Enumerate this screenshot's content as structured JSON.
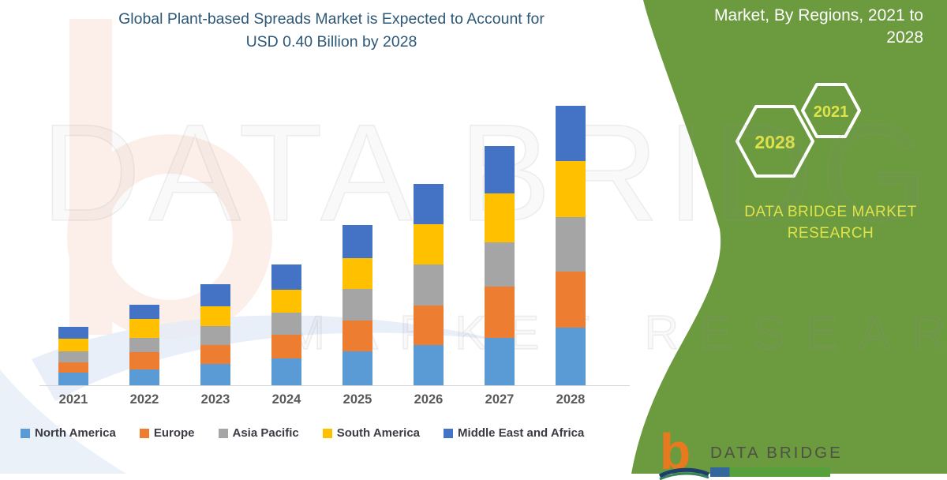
{
  "header": {
    "title_line1": "Global Plant-based Spreads Market is Expected to Account for",
    "title_line2": "USD 0.40 Billion by 2028"
  },
  "side_panel": {
    "heading_line1": "Market, By Regions, 2021 to",
    "heading_line2": "2028",
    "hexagons": [
      {
        "year": "2028"
      },
      {
        "year": "2021"
      }
    ],
    "brand_line1": "DATA BRIDGE MARKET",
    "brand_line2": "RESEARCH"
  },
  "footer_logo": {
    "logo_letter": "b",
    "brand": "DATA BRIDGE"
  },
  "watermark": {
    "line1": "DATA BRIDGE",
    "line2": "MARKET RESEARCH"
  },
  "colors": {
    "green_panel": "#6C9A3F",
    "panel_accent_yellow": "#dfe34a",
    "title_blue": "#2d5877",
    "axis_label_gray": "#595959",
    "legend_text": "#3b3b44",
    "footer_orange": "#e8791e"
  },
  "chart_data": {
    "type": "bar",
    "stacked": true,
    "title": "Global Plant-based Spreads Market is Expected to Account for USD 0.40 Billion by 2028",
    "units": "USD Million (values estimated from bar heights; 2028 total = USD 0.40 Billion)",
    "categories": [
      "2021",
      "2022",
      "2023",
      "2024",
      "2025",
      "2026",
      "2027",
      "2028"
    ],
    "series": [
      {
        "name": "North America",
        "color": "#5B9BD5",
        "values": [
          18,
          23,
          31,
          38,
          48,
          57,
          68,
          82
        ]
      },
      {
        "name": "Europe",
        "color": "#ED7D31",
        "values": [
          15,
          24,
          27,
          34,
          45,
          57,
          73,
          80
        ]
      },
      {
        "name": "Asia Pacific",
        "color": "#A5A5A5",
        "values": [
          16,
          21,
          27,
          32,
          45,
          59,
          63,
          78
        ]
      },
      {
        "name": "South America",
        "color": "#FFC000",
        "values": [
          18,
          27,
          28,
          32,
          43,
          57,
          70,
          80
        ]
      },
      {
        "name": "Middle East and Africa",
        "color": "#4472C4",
        "values": [
          17,
          20,
          31,
          36,
          48,
          57,
          68,
          79
        ]
      }
    ],
    "totals": [
      84,
      115,
      144,
      172,
      229,
      287,
      342,
      399
    ],
    "xlabel": "",
    "ylabel": "",
    "y_axis_visible": false,
    "gridlines": false,
    "legend_position": "bottom"
  }
}
